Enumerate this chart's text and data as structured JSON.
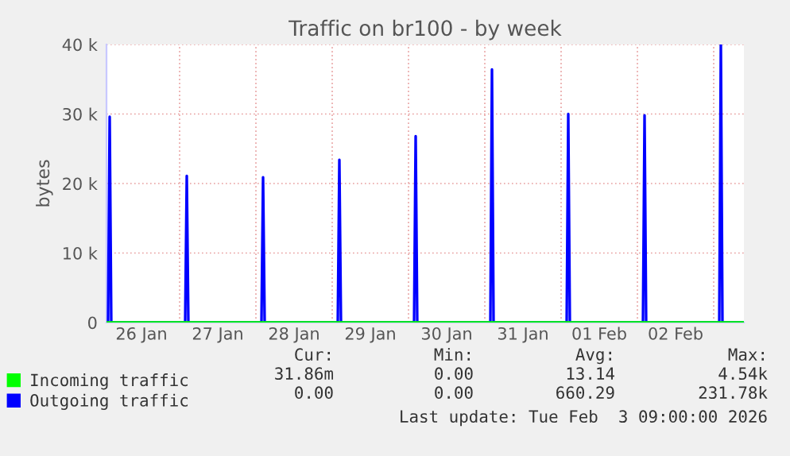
{
  "chart_data": {
    "type": "line",
    "title": "Traffic on br100 - by week",
    "ylabel": "bytes",
    "xlim": [
      "2026-01-26T01:00",
      "2026-02-03T09:30"
    ],
    "ylim": [
      0,
      40000
    ],
    "xticks": [
      {
        "value": "2026-01-26T12:00",
        "label": "26 Jan"
      },
      {
        "value": "2026-01-27T00:00",
        "label": null
      },
      {
        "value": "2026-01-27T12:00",
        "label": "27 Jan"
      },
      {
        "value": "2026-01-28T00:00",
        "label": null
      },
      {
        "value": "2026-01-28T12:00",
        "label": "28 Jan"
      },
      {
        "value": "2026-01-29T00:00",
        "label": null
      },
      {
        "value": "2026-01-29T12:00",
        "label": "29 Jan"
      },
      {
        "value": "2026-01-30T00:00",
        "label": null
      },
      {
        "value": "2026-01-30T12:00",
        "label": "30 Jan"
      },
      {
        "value": "2026-01-31T00:00",
        "label": null
      },
      {
        "value": "2026-01-31T12:00",
        "label": "31 Jan"
      },
      {
        "value": "2026-02-01T00:00",
        "label": null
      },
      {
        "value": "2026-02-01T12:00",
        "label": "01 Feb"
      },
      {
        "value": "2026-02-02T00:00",
        "label": null
      },
      {
        "value": "2026-02-02T12:00",
        "label": "02 Feb"
      },
      {
        "value": "2026-02-03T00:00",
        "label": null
      }
    ],
    "yticks": [
      0,
      {
        "value": 10000,
        "label": "10 k"
      },
      {
        "value": 20000,
        "label": "20 k"
      },
      {
        "value": 30000,
        "label": "30 k"
      },
      {
        "value": 40000,
        "label": "40 k"
      }
    ],
    "grid": true,
    "legend": "bottom left",
    "series": [
      {
        "name": "Outgoing traffic",
        "color": "#0000ff",
        "x": [
          "2026-01-26T01:00",
          "2026-01-26T01:30",
          "2026-01-26T02:00",
          "2026-01-26T02:30",
          "2026-01-27T01:45",
          "2026-01-27T02:15",
          "2026-01-27T02:45",
          "2026-01-28T01:45",
          "2026-01-28T02:15",
          "2026-01-28T02:45",
          "2026-01-29T01:45",
          "2026-01-29T02:15",
          "2026-01-29T02:45",
          "2026-01-30T01:45",
          "2026-01-30T02:15",
          "2026-01-30T02:45",
          "2026-01-31T01:45",
          "2026-01-31T02:15",
          "2026-01-31T02:45",
          "2026-02-01T01:45",
          "2026-02-01T02:15",
          "2026-02-01T02:45",
          "2026-02-02T01:45",
          "2026-02-02T02:15",
          "2026-02-02T02:45",
          "2026-02-03T01:45",
          "2026-02-03T02:15",
          "2026-02-03T02:45",
          "2026-02-03T09:30"
        ],
        "values": [
          0,
          0,
          29600,
          0,
          0,
          21100,
          0,
          0,
          20900,
          0,
          0,
          23400,
          0,
          0,
          26800,
          0,
          0,
          36400,
          0,
          0,
          30000,
          0,
          0,
          29800,
          0,
          0,
          40000,
          0,
          0
        ]
      },
      {
        "name": "Incoming traffic",
        "color": "#00ff00",
        "x": [
          "2026-01-26T01:00",
          "2026-02-03T09:30"
        ],
        "values": [
          0,
          0
        ]
      }
    ],
    "annotations": [
      "Cur:",
      "Min:",
      "Avg:",
      "Max:",
      "31.86m",
      "0.00",
      "13.14",
      "4.54k",
      "0.00",
      "0.00",
      "660.29",
      "231.78k",
      "Last update: Tue Feb  3 09:00:00 2026"
    ]
  }
}
